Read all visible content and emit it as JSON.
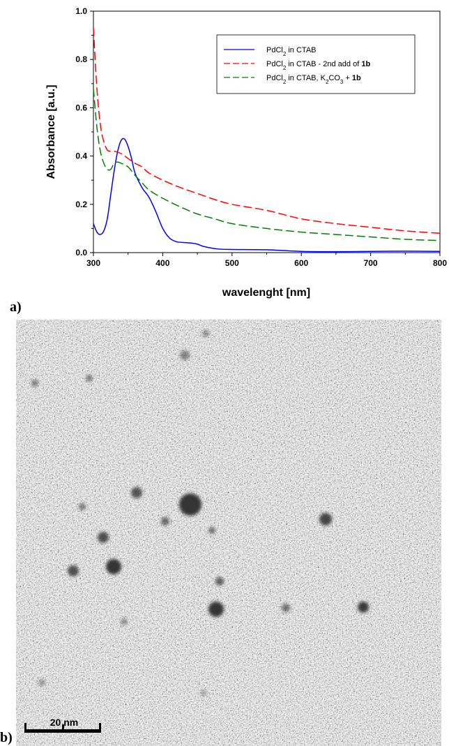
{
  "panel_a_label": "a)",
  "panel_b_label": "b)",
  "chart_data": {
    "type": "line",
    "xlabel": "wavelenght [nm]",
    "ylabel": "Absorbance [a.u.]",
    "xlim": [
      300,
      800
    ],
    "ylim": [
      0,
      1.0
    ],
    "xticks": [
      300,
      400,
      500,
      600,
      700,
      800
    ],
    "yticks": [
      0.0,
      0.2,
      0.4,
      0.6,
      0.8,
      1.0
    ],
    "xtick_labels": [
      "300",
      "400",
      "500",
      "600",
      "700",
      "800"
    ],
    "ytick_labels": [
      "0.0",
      "0.2",
      "0.4",
      "0.6",
      "0.8",
      "1.0"
    ],
    "grid": false,
    "legend_position": "top-right",
    "series": [
      {
        "name": "PdCl2 in CTAB",
        "legend_parts": [
          [
            "PdCl",
            ""
          ],
          [
            "2",
            "sub"
          ],
          [
            " in CTAB",
            ""
          ]
        ],
        "color": "#0000ff",
        "dash": "solid",
        "x": [
          300,
          305,
          310,
          315,
          320,
          325,
          330,
          335,
          340,
          345,
          350,
          355,
          360,
          370,
          380,
          390,
          400,
          410,
          420,
          430,
          440,
          450,
          460,
          480,
          500,
          550,
          600,
          650,
          700,
          750,
          800
        ],
        "y": [
          0.12,
          0.085,
          0.075,
          0.09,
          0.14,
          0.24,
          0.34,
          0.42,
          0.465,
          0.47,
          0.44,
          0.39,
          0.33,
          0.27,
          0.23,
          0.17,
          0.1,
          0.06,
          0.045,
          0.042,
          0.04,
          0.035,
          0.025,
          0.015,
          0.013,
          0.012,
          0.005,
          0.004,
          0.005,
          0.006,
          0.005
        ]
      },
      {
        "name": "PdCl2 in CTAB - 2nd add of 1b",
        "legend_parts": [
          [
            "PdCl",
            ""
          ],
          [
            "2",
            "sub"
          ],
          [
            " in CTAB - 2nd add of ",
            ""
          ],
          [
            "1b",
            "bold"
          ]
        ],
        "color": "#ff0000",
        "dash": "long-dash",
        "x": [
          300,
          305,
          310,
          315,
          320,
          325,
          330,
          340,
          350,
          360,
          370,
          380,
          400,
          425,
          450,
          475,
          500,
          550,
          600,
          650,
          700,
          750,
          800
        ],
        "y": [
          0.93,
          0.68,
          0.53,
          0.46,
          0.425,
          0.42,
          0.42,
          0.41,
          0.39,
          0.37,
          0.355,
          0.33,
          0.3,
          0.27,
          0.245,
          0.22,
          0.2,
          0.175,
          0.14,
          0.12,
          0.105,
          0.09,
          0.08
        ]
      },
      {
        "name": "PdCl2 in CTAB, K2CO3 + 1b",
        "legend_parts": [
          [
            "PdCl",
            ""
          ],
          [
            "2",
            "sub"
          ],
          [
            " in CTAB, K",
            ""
          ],
          [
            "2",
            "sub"
          ],
          [
            "CO",
            ""
          ],
          [
            "3",
            "sub"
          ],
          [
            " + ",
            ""
          ],
          [
            "1b",
            "bold"
          ]
        ],
        "color": "#008000",
        "dash": "long-dash",
        "x": [
          300,
          305,
          310,
          315,
          320,
          325,
          330,
          335,
          340,
          350,
          360,
          370,
          380,
          400,
          425,
          450,
          475,
          500,
          550,
          600,
          650,
          700,
          750,
          800
        ],
        "y": [
          0.68,
          0.52,
          0.42,
          0.37,
          0.345,
          0.345,
          0.37,
          0.375,
          0.37,
          0.355,
          0.32,
          0.29,
          0.26,
          0.225,
          0.19,
          0.16,
          0.14,
          0.12,
          0.1,
          0.085,
          0.075,
          0.065,
          0.055,
          0.05
        ]
      }
    ]
  },
  "micrograph": {
    "scale_bar_label": "20 nm",
    "particles_visible": true
  }
}
